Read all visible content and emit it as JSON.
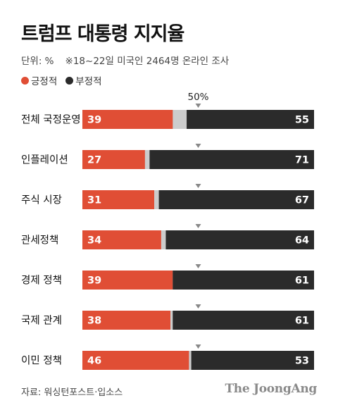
{
  "header": {
    "title": "트럼프 대통령 지지율",
    "unit": "단위: %",
    "note": "※18~22일 미국인 2464명 온라인 조사"
  },
  "legend": [
    {
      "label": "긍정적",
      "color": "#e04e35"
    },
    {
      "label": "부정적",
      "color": "#2b2b2b"
    }
  ],
  "colors": {
    "positive": "#e04e35",
    "negative": "#2b2b2b",
    "neutral": "#cccccc",
    "marker": "#888888"
  },
  "footer": {
    "source": "자료: 워싱턴포스트·입소스",
    "brand": "The JoongAng"
  },
  "chart_data": {
    "type": "bar",
    "orientation": "horizontal",
    "stacked": true,
    "categories": [
      "전체 국정운영",
      "인플레이션",
      "주식 시장",
      "관세정책",
      "경제 정책",
      "국제 관계",
      "이민 정책"
    ],
    "series": [
      {
        "name": "긍정적",
        "values": [
          39,
          27,
          31,
          34,
          39,
          38,
          46
        ]
      },
      {
        "name": "부정적",
        "values": [
          55,
          71,
          67,
          64,
          61,
          61,
          53
        ]
      }
    ],
    "xlim": [
      0,
      100
    ],
    "reference_line": {
      "value": 50,
      "label": "50%"
    },
    "legend_position": "top-left"
  }
}
